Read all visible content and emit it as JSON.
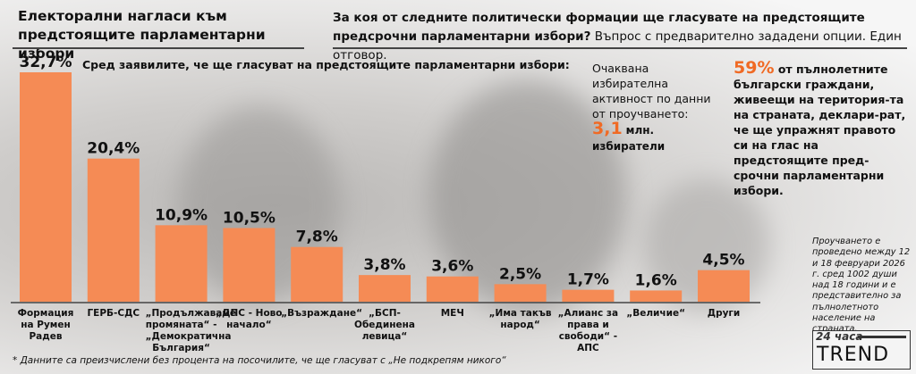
{
  "header": {
    "title": "Електорални нагласи към предстоящите парламентарни избори",
    "question_bold": "За коя от следните политически формации ще гласувате на предстоящите предсрочни парламентарни избори?",
    "question_rest": " Въпрос с предварително зададени опции. Един отговор."
  },
  "subtitle": "Сред заявилите, че ще гласуват на предстоящите парламентарни избори:",
  "turnout": {
    "text": "Очаквана избирателна активност по данни от проучването:",
    "value": "3,1",
    "unit": "млн. избиратели"
  },
  "participation": {
    "value": "59%",
    "text": "от пълнолетните български граждани, живеещи на територия-та на страната, деклари-рат, че ще упражнят правото си на глас на предстоящите пред-срочни парламентарни избори."
  },
  "methodology": "Проучването е проведено между 12 и 18 февруари 2026 г. сред 1002 души над 18 години и е представително за пълнолетното население на страната.",
  "footnote": "* Данните са преизчислени без процента на посочилите, че ще гласуват с „Не подкрепям никого“",
  "logo": {
    "top": "24 часа",
    "bottom": "TREND"
  },
  "colors": {
    "bar": "#f58b55",
    "accent": "#f06a24"
  },
  "chart_data": {
    "type": "bar",
    "title": "Електорални нагласи към предстоящите парламентарни избори",
    "xlabel": "",
    "ylabel": "",
    "ylim": [
      0,
      35
    ],
    "grid": false,
    "categories": [
      "Формация на Румен Радев",
      "ГЕРБ-СДС",
      "„Продължаваме промяната“ - „Демократична България“",
      "„ДПС - Ново начало“",
      "„Възраждане“",
      "„БСП-Обединена левица“",
      "МЕЧ",
      "„Има такъв народ“",
      "„Алианс за права и свободи“ - АПС",
      "„Величие“",
      "Други"
    ],
    "values": [
      32.7,
      20.4,
      10.9,
      10.5,
      7.8,
      3.8,
      3.6,
      2.5,
      1.7,
      1.6,
      4.5
    ],
    "labels": [
      "32,7%",
      "20,4%",
      "10,9%",
      "10,5%",
      "7,8%",
      "3,8%",
      "3,6%",
      "2,5%",
      "1,7%",
      "1,6%",
      "4,5%"
    ]
  }
}
